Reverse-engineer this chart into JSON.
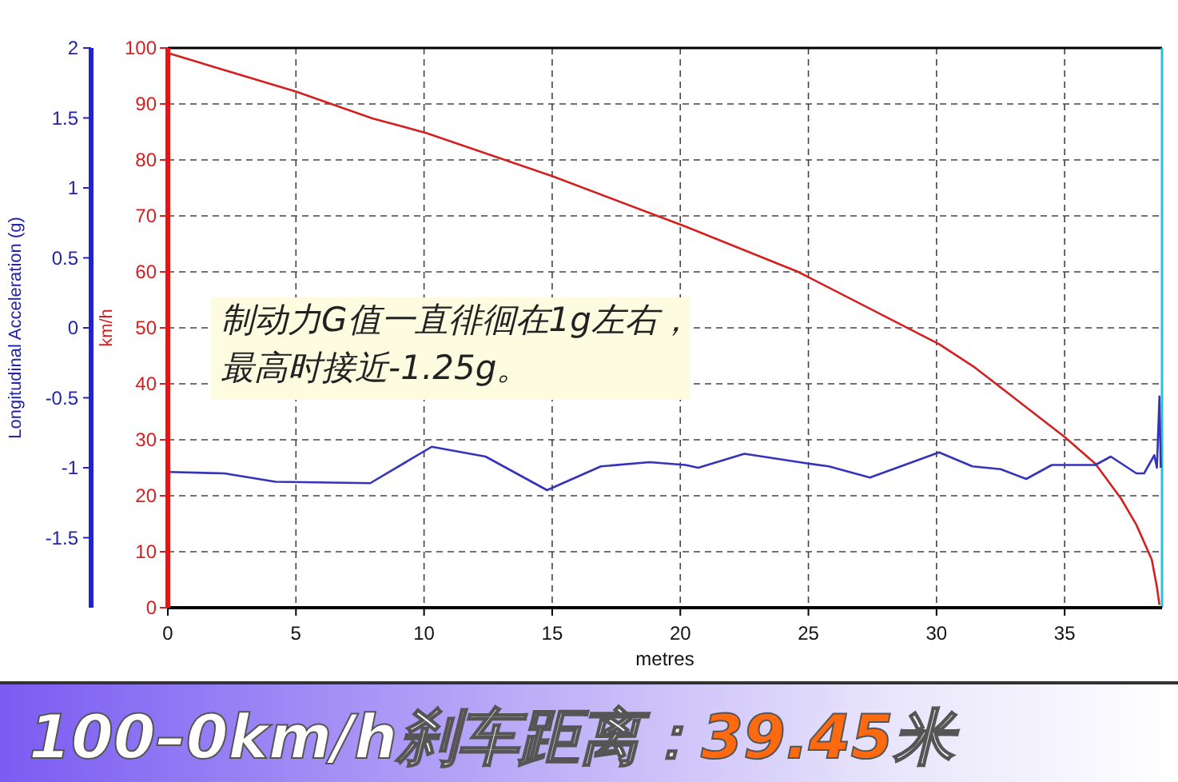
{
  "chart_data": {
    "type": "line",
    "title": "100–0km/h刹车距离：39.45米",
    "xlabel": "metres",
    "ylabel": "km/h",
    "y2label": "Longitudinal Acceleration (g)",
    "annotations": [
      "制动力G值一直徘徊在1g左右，",
      "最高时接近-1.25g。"
    ],
    "xlim": [
      0,
      38.8
    ],
    "xticks": [
      0,
      5,
      10,
      15,
      20,
      25,
      30,
      35
    ],
    "ylim": [
      0,
      100
    ],
    "yticks": [
      0,
      10,
      20,
      30,
      40,
      50,
      60,
      70,
      80,
      90,
      100
    ],
    "y2lim": [
      -2,
      2
    ],
    "y2ticks": [
      -1.5,
      -1,
      -0.5,
      0,
      0.5,
      1,
      1.5,
      2
    ],
    "grid": true,
    "line_style": "solid",
    "series": [
      {
        "color": "#d42020",
        "x": [
          0,
          5,
          8,
          10.1,
          15,
          20.2,
          24.6,
          30.1,
          31.5,
          35,
          36.2,
          37.2,
          37.8,
          38.4,
          38.6,
          38.7
        ],
        "values": [
          99.1,
          92.2,
          87.4,
          84.8,
          77.1,
          68.1,
          60,
          47.1,
          42.9,
          30.5,
          25.7,
          19.5,
          14.8,
          8.6,
          3.7,
          0.5
        ]
      },
      {
        "color": "#3333bb",
        "axis": "y2",
        "x": [
          0,
          2.2,
          4.2,
          7.9,
          10.3,
          12.4,
          14.8,
          16.9,
          18.8,
          20.2,
          20.7,
          22.5,
          25,
          25.8,
          27.4,
          30.1,
          31.4,
          32.5,
          33.5,
          34.5,
          36.2,
          36.8,
          37.8,
          38.1,
          38.5,
          38.6,
          38.7,
          38.75
        ],
        "values": [
          -1.03,
          -1.04,
          -1.1,
          -1.11,
          -0.85,
          -0.92,
          -1.16,
          -0.99,
          -0.96,
          -0.98,
          -1,
          -0.9,
          -0.97,
          -0.99,
          -1.07,
          -0.89,
          -0.99,
          -1.01,
          -1.08,
          -0.98,
          -0.98,
          -0.92,
          -1.04,
          -1.04,
          -0.91,
          -1,
          -0.49,
          -1
        ]
      }
    ]
  }
}
